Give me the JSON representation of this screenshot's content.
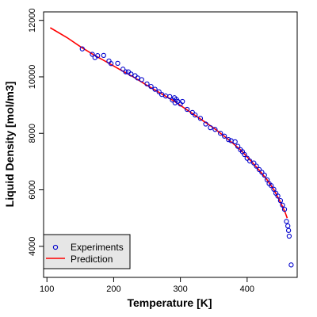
{
  "chart_data": {
    "type": "scatter",
    "xlabel": "Temperature [K]",
    "ylabel": "Liquid Density [mol/m3]",
    "xlim": [
      95,
      475
    ],
    "ylim": [
      2900,
      12300
    ],
    "x_ticks": [
      100,
      200,
      300,
      400
    ],
    "y_ticks": [
      4000,
      6000,
      8000,
      10000,
      12000
    ],
    "grid": false,
    "legend_placement": "bottom-left",
    "series": [
      {
        "name": "Experiments",
        "kind": "points",
        "color": "#0000cc",
        "points": [
          [
            153,
            10990
          ],
          [
            168,
            10800
          ],
          [
            172,
            10680
          ],
          [
            176,
            10750
          ],
          [
            185,
            10760
          ],
          [
            193,
            10560
          ],
          [
            196,
            10470
          ],
          [
            206,
            10480
          ],
          [
            214,
            10270
          ],
          [
            218,
            10180
          ],
          [
            222,
            10180
          ],
          [
            226,
            10100
          ],
          [
            232,
            10040
          ],
          [
            236,
            9960
          ],
          [
            242,
            9900
          ],
          [
            250,
            9750
          ],
          [
            256,
            9660
          ],
          [
            262,
            9560
          ],
          [
            268,
            9470
          ],
          [
            272,
            9380
          ],
          [
            278,
            9320
          ],
          [
            284,
            9300
          ],
          [
            288,
            9180
          ],
          [
            291,
            9260
          ],
          [
            292,
            9080
          ],
          [
            294,
            9200
          ],
          [
            296,
            9130
          ],
          [
            300,
            9040
          ],
          [
            303,
            9130
          ],
          [
            310,
            8850
          ],
          [
            318,
            8740
          ],
          [
            322,
            8650
          ],
          [
            330,
            8530
          ],
          [
            338,
            8330
          ],
          [
            345,
            8200
          ],
          [
            352,
            8140
          ],
          [
            360,
            8000
          ],
          [
            366,
            7900
          ],
          [
            372,
            7780
          ],
          [
            376,
            7740
          ],
          [
            382,
            7700
          ],
          [
            386,
            7540
          ],
          [
            390,
            7420
          ],
          [
            393,
            7350
          ],
          [
            396,
            7250
          ],
          [
            400,
            7120
          ],
          [
            404,
            7020
          ],
          [
            410,
            6950
          ],
          [
            414,
            6840
          ],
          [
            418,
            6720
          ],
          [
            422,
            6620
          ],
          [
            426,
            6520
          ],
          [
            430,
            6350
          ],
          [
            433,
            6220
          ],
          [
            436,
            6150
          ],
          [
            440,
            6020
          ],
          [
            443,
            5880
          ],
          [
            446,
            5780
          ],
          [
            450,
            5620
          ],
          [
            453,
            5460
          ],
          [
            456,
            5310
          ],
          [
            459,
            4880
          ],
          [
            461,
            4720
          ],
          [
            462,
            4560
          ],
          [
            463,
            4360
          ],
          [
            466,
            3340
          ]
        ]
      },
      {
        "name": "Prediction",
        "kind": "line",
        "color": "#ff0000",
        "points": [
          [
            105,
            11740
          ],
          [
            130,
            11390
          ],
          [
            150,
            11070
          ],
          [
            170,
            10780
          ],
          [
            190,
            10520
          ],
          [
            210,
            10250
          ],
          [
            230,
            9990
          ],
          [
            250,
            9700
          ],
          [
            270,
            9420
          ],
          [
            290,
            9150
          ],
          [
            310,
            8830
          ],
          [
            330,
            8510
          ],
          [
            350,
            8190
          ],
          [
            370,
            7820
          ],
          [
            390,
            7420
          ],
          [
            410,
            6910
          ],
          [
            420,
            6640
          ],
          [
            430,
            6350
          ],
          [
            440,
            6010
          ],
          [
            448,
            5650
          ],
          [
            453,
            5400
          ],
          [
            457,
            5200
          ],
          [
            460,
            5000
          ]
        ]
      }
    ]
  }
}
